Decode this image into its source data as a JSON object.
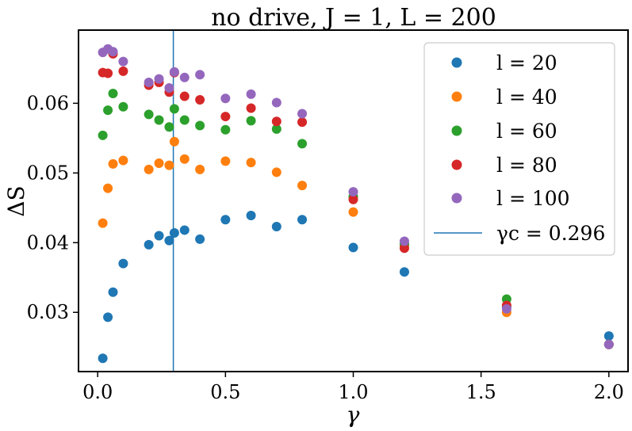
{
  "chart_data": {
    "type": "scatter",
    "title": "no drive, J = 1, L = 200",
    "xlabel": "γ",
    "ylabel": "ΔS",
    "xlim": [
      -0.075,
      2.075
    ],
    "ylim": [
      0.0215,
      0.0705
    ],
    "xticks": [
      0.0,
      0.5,
      1.0,
      1.5,
      2.0
    ],
    "xtick_labels": [
      "0.0",
      "0.5",
      "1.0",
      "1.5",
      "2.0"
    ],
    "yticks": [
      0.03,
      0.04,
      0.05,
      0.06
    ],
    "ytick_labels": [
      "0.03",
      "0.04",
      "0.05",
      "0.06"
    ],
    "legend_position": "top-right",
    "series": [
      {
        "name": "l = 20",
        "color": "#1f77b4",
        "points": [
          [
            0.02,
            0.0234
          ],
          [
            0.04,
            0.0293
          ],
          [
            0.06,
            0.0329
          ],
          [
            0.1,
            0.037
          ],
          [
            0.2,
            0.0397
          ],
          [
            0.24,
            0.041
          ],
          [
            0.28,
            0.0403
          ],
          [
            0.3,
            0.0414
          ],
          [
            0.34,
            0.0418
          ],
          [
            0.4,
            0.0405
          ],
          [
            0.5,
            0.0433
          ],
          [
            0.6,
            0.0439
          ],
          [
            0.7,
            0.0423
          ],
          [
            0.8,
            0.0433
          ],
          [
            1.0,
            0.0393
          ],
          [
            1.2,
            0.0358
          ],
          [
            1.6,
            0.0308
          ],
          [
            2.0,
            0.0266
          ]
        ]
      },
      {
        "name": "l = 40",
        "color": "#ff7f0e",
        "points": [
          [
            0.02,
            0.0428
          ],
          [
            0.04,
            0.0478
          ],
          [
            0.06,
            0.0513
          ],
          [
            0.1,
            0.0518
          ],
          [
            0.2,
            0.0505
          ],
          [
            0.24,
            0.0514
          ],
          [
            0.28,
            0.0511
          ],
          [
            0.3,
            0.0545
          ],
          [
            0.34,
            0.052
          ],
          [
            0.4,
            0.0505
          ],
          [
            0.5,
            0.0517
          ],
          [
            0.6,
            0.0515
          ],
          [
            0.7,
            0.0501
          ],
          [
            0.8,
            0.0482
          ],
          [
            1.0,
            0.0444
          ],
          [
            1.2,
            0.0396
          ],
          [
            1.6,
            0.03
          ],
          [
            2.0,
            0.0254
          ]
        ]
      },
      {
        "name": "l = 60",
        "color": "#2ca02c",
        "points": [
          [
            0.02,
            0.0554
          ],
          [
            0.04,
            0.059
          ],
          [
            0.06,
            0.0614
          ],
          [
            0.1,
            0.0595
          ],
          [
            0.2,
            0.0584
          ],
          [
            0.24,
            0.0576
          ],
          [
            0.28,
            0.0566
          ],
          [
            0.3,
            0.0592
          ],
          [
            0.34,
            0.0576
          ],
          [
            0.4,
            0.0568
          ],
          [
            0.5,
            0.0562
          ],
          [
            0.6,
            0.0575
          ],
          [
            0.7,
            0.0563
          ],
          [
            0.8,
            0.0542
          ],
          [
            1.0,
            0.0466
          ],
          [
            1.2,
            0.0398
          ],
          [
            1.6,
            0.0319
          ],
          [
            2.0,
            0.0254
          ]
        ]
      },
      {
        "name": "l = 80",
        "color": "#d62728",
        "points": [
          [
            0.02,
            0.0644
          ],
          [
            0.04,
            0.0643
          ],
          [
            0.06,
            0.0671
          ],
          [
            0.1,
            0.0646
          ],
          [
            0.2,
            0.0626
          ],
          [
            0.24,
            0.063
          ],
          [
            0.28,
            0.0616
          ],
          [
            0.3,
            0.0644
          ],
          [
            0.34,
            0.061
          ],
          [
            0.4,
            0.0605
          ],
          [
            0.5,
            0.0581
          ],
          [
            0.6,
            0.0593
          ],
          [
            0.7,
            0.0574
          ],
          [
            0.8,
            0.0573
          ],
          [
            1.0,
            0.0462
          ],
          [
            1.2,
            0.0392
          ],
          [
            1.6,
            0.031
          ],
          [
            2.0,
            0.0254
          ]
        ]
      },
      {
        "name": "l = 100",
        "color": "#9467bd",
        "points": [
          [
            0.02,
            0.0673
          ],
          [
            0.04,
            0.0678
          ],
          [
            0.06,
            0.0674
          ],
          [
            0.1,
            0.066
          ],
          [
            0.2,
            0.063
          ],
          [
            0.24,
            0.0635
          ],
          [
            0.28,
            0.0622
          ],
          [
            0.3,
            0.0645
          ],
          [
            0.34,
            0.0637
          ],
          [
            0.4,
            0.0641
          ],
          [
            0.5,
            0.0607
          ],
          [
            0.6,
            0.0613
          ],
          [
            0.7,
            0.0601
          ],
          [
            0.8,
            0.0585
          ],
          [
            1.0,
            0.0473
          ],
          [
            1.2,
            0.0402
          ],
          [
            1.6,
            0.0305
          ],
          [
            2.0,
            0.0254
          ]
        ]
      }
    ],
    "vline": {
      "x": 0.296,
      "label": "γc = 0.296",
      "color": "#1f77b4"
    }
  }
}
